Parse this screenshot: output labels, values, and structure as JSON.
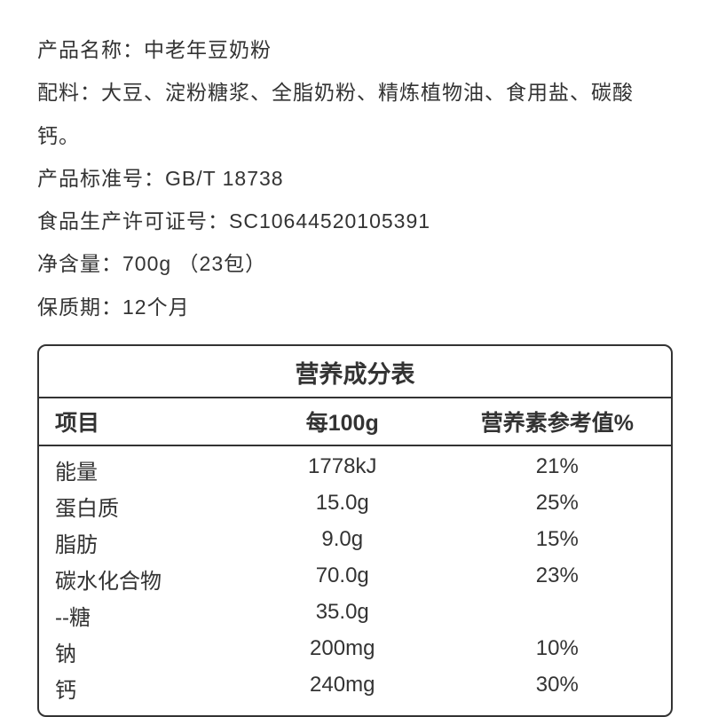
{
  "product": {
    "name_label": "产品名称：",
    "name_value": "中老年豆奶粉",
    "ingredients_label": "配料：",
    "ingredients_value": "大豆、淀粉糖浆、全脂奶粉、精炼植物油、食用盐、碳酸钙。",
    "standard_label": "产品标准号：",
    "standard_value": "GB/T 18738",
    "license_label": "食品生产许可证号：",
    "license_value": "SC10644520105391",
    "net_weight_label": "净含量：",
    "net_weight_value": "700g （23包）",
    "shelf_life_label": "保质期：",
    "shelf_life_value": "12个月"
  },
  "nutrition": {
    "title": "营养成分表",
    "columns": [
      "项目",
      "每100g",
      "营养素参考值%"
    ],
    "rows": [
      {
        "name": "能量",
        "per100g": "1778kJ",
        "nrv": "21%"
      },
      {
        "name": "蛋白质",
        "per100g": "15.0g",
        "nrv": "25%"
      },
      {
        "name": "脂肪",
        "per100g": "9.0g",
        "nrv": "15%"
      },
      {
        "name": "碳水化合物",
        "per100g": "70.0g",
        "nrv": "23%"
      },
      {
        "name": "--糖",
        "per100g": "35.0g",
        "nrv": ""
      },
      {
        "name": "钠",
        "per100g": "200mg",
        "nrv": "10%"
      },
      {
        "name": "钙",
        "per100g": "240mg",
        "nrv": "30%"
      }
    ]
  },
  "styling": {
    "text_color": "#333333",
    "background_color": "#ffffff",
    "border_color": "#333333",
    "info_fontsize": 23,
    "table_title_fontsize": 27,
    "table_header_fontsize": 25,
    "table_body_fontsize": 24,
    "border_radius": 10
  }
}
